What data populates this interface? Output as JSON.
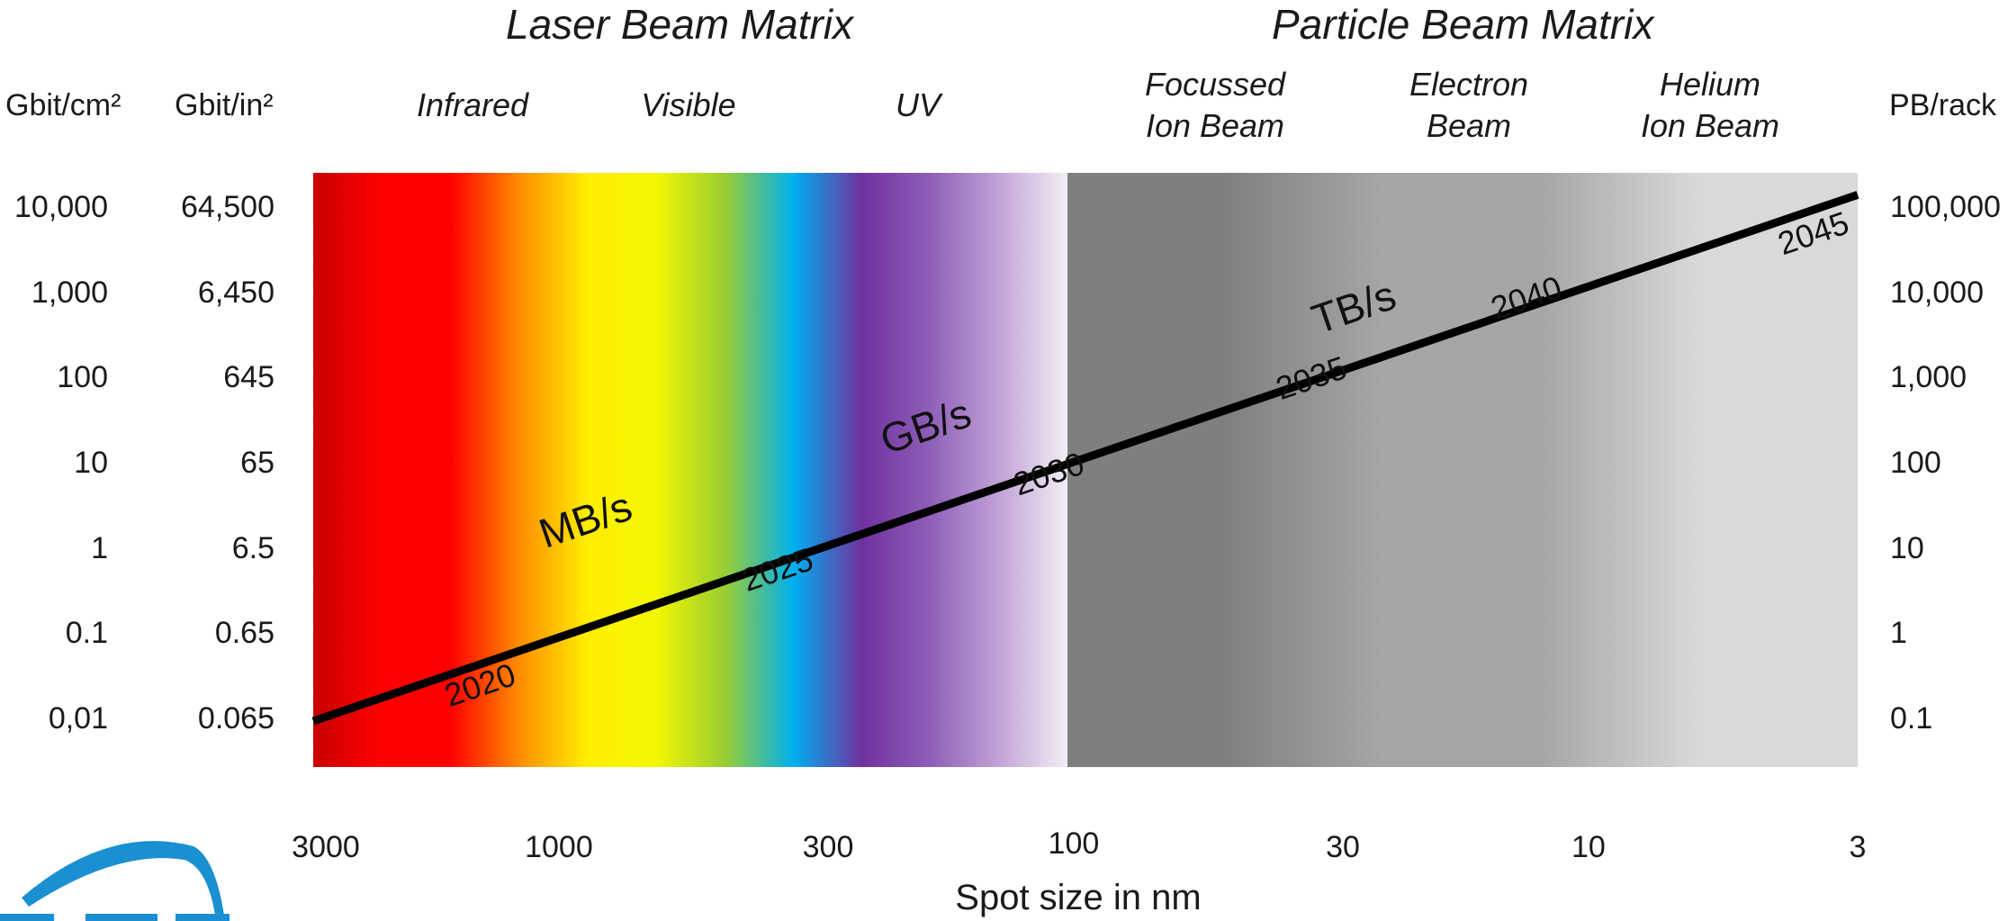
{
  "chart_data": {
    "type": "line",
    "titles": {
      "laser": "Laser Beam Matrix",
      "particle": "Particle Beam Matrix"
    },
    "regions": [
      {
        "line1": "Infrared",
        "line2": ""
      },
      {
        "line1": "Visible",
        "line2": ""
      },
      {
        "line1": "UV",
        "line2": ""
      },
      {
        "line1": "Focussed",
        "line2": "Ion Beam"
      },
      {
        "line1": "Electron",
        "line2": "Beam"
      },
      {
        "line1": "Helium",
        "line2": "Ion Beam"
      }
    ],
    "axis_left_cm": {
      "label": "Gbit/cm²",
      "ticks": [
        "10,000",
        "1,000",
        "100",
        "10",
        "1",
        "0.1",
        "0,01"
      ]
    },
    "axis_left_in": {
      "label": "Gbit/in²",
      "ticks": [
        "64,500",
        "6,450",
        "645",
        "65",
        "6.5",
        "0.65",
        "0.065"
      ]
    },
    "axis_right": {
      "label": "PB/rack",
      "ticks": [
        "100,000",
        "10,000",
        "1,000",
        "100",
        "10",
        "1",
        "0.1"
      ]
    },
    "x_ticks": [
      "3000",
      "1000",
      "300",
      "100",
      "30",
      "10",
      "3"
    ],
    "xlabel": "Spot size in nm",
    "x_scale": "log-reversed",
    "y_scale": "log",
    "xlim": [
      3000,
      3
    ],
    "ylim_gbit_cm2": [
      0.01,
      10000
    ],
    "series": [
      {
        "points": [
          {
            "spot_nm": 3000,
            "gbit_cm2": 0.01
          },
          {
            "spot_nm": 3,
            "gbit_cm2": 15000
          }
        ],
        "year_labels": [
          {
            "text": "2020",
            "spot_nm": 1400,
            "gbit_cm2": 0.02
          },
          {
            "text": "2025",
            "spot_nm": 370,
            "gbit_cm2": 0.45
          },
          {
            "text": "2030",
            "spot_nm": 110,
            "gbit_cm2": 6
          },
          {
            "text": "2035",
            "spot_nm": 34,
            "gbit_cm2": 80
          },
          {
            "text": "2040",
            "spot_nm": 13,
            "gbit_cm2": 700
          },
          {
            "text": "2045",
            "spot_nm": 3.6,
            "gbit_cm2": 4000
          }
        ],
        "rate_labels": [
          {
            "text": "MB/s",
            "spot_nm": 870,
            "gbit_cm2": 1.6
          },
          {
            "text": "GB/s",
            "spot_nm": 190,
            "gbit_cm2": 20
          },
          {
            "text": "TB/s",
            "spot_nm": 28,
            "gbit_cm2": 500
          }
        ]
      }
    ],
    "colors": {
      "line": "#000000",
      "laser_gradient": [
        "#c80000",
        "#ff0000",
        "#ff0000",
        "#ff8c00",
        "#ffee00",
        "#f3f700",
        "#9acd32",
        "#00b0f0",
        "#7030a0",
        "#8e5fb8",
        "#c2a3d6",
        "#f2eef6"
      ],
      "particle_gradient": [
        "#7f7f7f",
        "#7f7f7f",
        "#a6a6a6",
        "#a6a6a6",
        "#d9d9d9",
        "#d9d9d9"
      ],
      "logo": "#1a8fd1"
    }
  }
}
